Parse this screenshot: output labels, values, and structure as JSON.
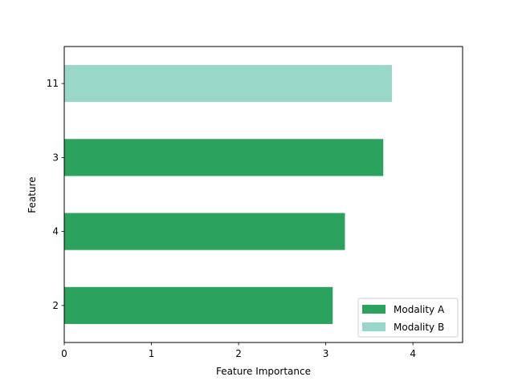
{
  "chart_data": {
    "type": "bar",
    "orientation": "horizontal",
    "categories": [
      "2",
      "4",
      "3",
      "11"
    ],
    "values": [
      3.08,
      3.22,
      3.66,
      3.76
    ],
    "groups": [
      "Modality A",
      "Modality A",
      "Modality A",
      "Modality B"
    ],
    "xlabel": "Feature Importance",
    "ylabel": "Feature",
    "xlim": [
      0,
      4.57
    ],
    "xticks": [
      0,
      1,
      2,
      3,
      4
    ],
    "grid": false,
    "legend": {
      "placement": "lower-right",
      "entries": [
        {
          "name": "Modality A",
          "color": "#2ca25f"
        },
        {
          "name": "Modality B",
          "color": "#99d8c9"
        }
      ]
    }
  }
}
